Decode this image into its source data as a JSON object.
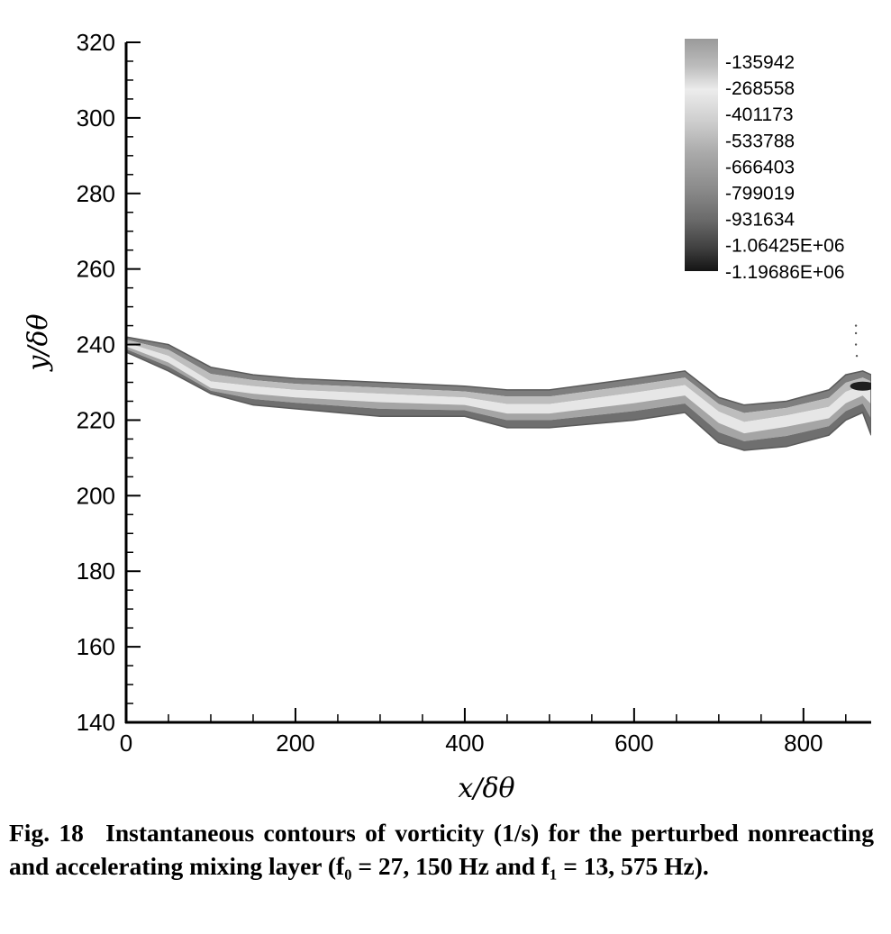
{
  "chart_data": {
    "type": "heatmap",
    "xlabel": "x/δθ",
    "ylabel": "y/δθ",
    "xlim": [
      0,
      880
    ],
    "ylim": [
      140,
      320
    ],
    "x_ticks": [
      0,
      200,
      400,
      600,
      800
    ],
    "y_ticks": [
      140,
      160,
      180,
      200,
      220,
      240,
      260,
      280,
      300,
      320
    ],
    "colormap": "grayscale",
    "legend_placement": "top-right",
    "legend": {
      "levels": [
        "-135942",
        "-268558",
        "-401173",
        "-533788",
        "-666403",
        "-799019",
        "-931634",
        "-1.06425E+06",
        "-1.19686E+06"
      ]
    },
    "layer_profile": {
      "x": [
        0,
        50,
        100,
        150,
        200,
        300,
        400,
        450,
        500,
        600,
        660,
        700,
        730,
        780,
        830,
        850,
        870,
        880
      ],
      "y_upper": [
        242,
        240,
        234,
        232,
        231,
        230,
        229,
        228,
        228,
        231,
        233,
        226,
        224,
        225,
        228,
        232,
        233,
        232
      ],
      "y_center": [
        240,
        236,
        229,
        228,
        227,
        226,
        225,
        223,
        223,
        226,
        228,
        221,
        218,
        220,
        222,
        226,
        228,
        227
      ],
      "y_lower": [
        238,
        233,
        227,
        224,
        223,
        221,
        221,
        218,
        218,
        220,
        222,
        214,
        212,
        213,
        216,
        220,
        222,
        216
      ]
    }
  },
  "caption": {
    "fig_number": "Fig. 18",
    "text": "Instantaneous contours of vorticity (1/s) for the perturbed nonreacting and accelerating mixing layer (f₀ = 27, 150 Hz and f₁ = 13, 575 Hz)."
  }
}
